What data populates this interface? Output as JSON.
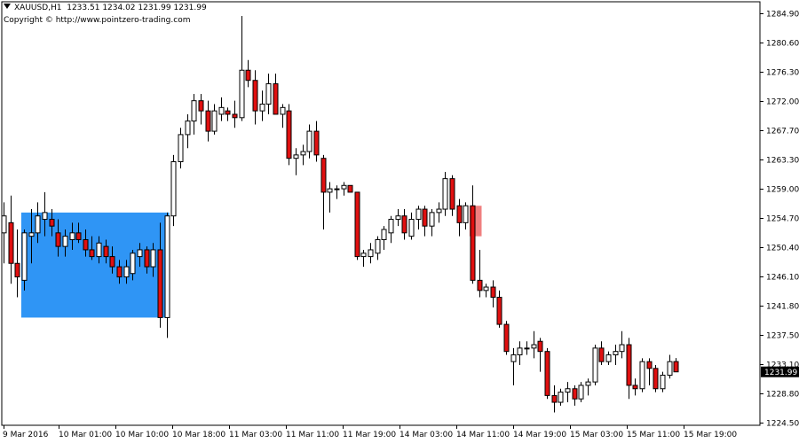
{
  "header": {
    "symbol": "XAUUSD,H1",
    "ohlc": "1233.51 1234.02 1231.99 1231.99",
    "copyright": "Copyright © http://www.pointzero-trading.com"
  },
  "colors": {
    "background": "#ffffff",
    "bull_body": "#ffffff",
    "bear_body": "#e01010",
    "wick": "#000000",
    "zone_blue": "#2f95f5",
    "zone_red": "#f08080"
  },
  "chart_data": {
    "type": "candlestick",
    "title": "",
    "xlabel": "",
    "ylabel": "",
    "ylim": [
      1223.8,
      1286.0
    ],
    "y_ticks": [
      "1284.90",
      "1280.60",
      "1276.30",
      "1272.00",
      "1267.70",
      "1263.30",
      "1259.00",
      "1254.70",
      "1250.40",
      "1246.10",
      "1241.80",
      "1237.50",
      "1233.10",
      "1228.80",
      "1224.50"
    ],
    "x_ticks": [
      "9 Mar 2016",
      "10 Mar 01:00",
      "10 Mar 10:00",
      "10 Mar 18:00",
      "11 Mar 03:00",
      "11 Mar 11:00",
      "11 Mar 19:00",
      "14 Mar 03:00",
      "14 Mar 11:00",
      "14 Mar 19:00",
      "15 Mar 03:00",
      "15 Mar 11:00",
      "15 Mar 19:00"
    ],
    "current_price": "1231.99",
    "candles": [
      {
        "o": 1252.5,
        "h": 1257.0,
        "l": 1248.0,
        "c": 1255.0
      },
      {
        "o": 1254.0,
        "h": 1258.0,
        "l": 1245.0,
        "c": 1248.0
      },
      {
        "o": 1248.0,
        "h": 1253.0,
        "l": 1243.0,
        "c": 1246.0
      },
      {
        "o": 1245.5,
        "h": 1253.0,
        "l": 1244.0,
        "c": 1252.5
      },
      {
        "o": 1252.0,
        "h": 1256.0,
        "l": 1248.0,
        "c": 1252.5
      },
      {
        "o": 1252.5,
        "h": 1257.0,
        "l": 1251.0,
        "c": 1255.0
      },
      {
        "o": 1254.5,
        "h": 1258.5,
        "l": 1252.0,
        "c": 1255.5
      },
      {
        "o": 1254.5,
        "h": 1256.0,
        "l": 1252.0,
        "c": 1253.5
      },
      {
        "o": 1252.5,
        "h": 1254.5,
        "l": 1249.0,
        "c": 1250.5
      },
      {
        "o": 1250.5,
        "h": 1253.0,
        "l": 1249.0,
        "c": 1252.0
      },
      {
        "o": 1251.5,
        "h": 1254.0,
        "l": 1250.0,
        "c": 1252.5
      },
      {
        "o": 1252.5,
        "h": 1254.0,
        "l": 1251.0,
        "c": 1251.5
      },
      {
        "o": 1251.5,
        "h": 1253.0,
        "l": 1249.0,
        "c": 1250.0
      },
      {
        "o": 1250.0,
        "h": 1252.0,
        "l": 1248.5,
        "c": 1249.0
      },
      {
        "o": 1249.0,
        "h": 1252.0,
        "l": 1248.0,
        "c": 1251.0
      },
      {
        "o": 1250.5,
        "h": 1251.5,
        "l": 1248.0,
        "c": 1249.0
      },
      {
        "o": 1249.0,
        "h": 1250.5,
        "l": 1246.5,
        "c": 1247.5
      },
      {
        "o": 1247.5,
        "h": 1248.5,
        "l": 1245.0,
        "c": 1246.0
      },
      {
        "o": 1246.0,
        "h": 1248.5,
        "l": 1245.0,
        "c": 1247.5
      },
      {
        "o": 1246.5,
        "h": 1250.0,
        "l": 1245.5,
        "c": 1249.5
      },
      {
        "o": 1249.0,
        "h": 1251.0,
        "l": 1247.5,
        "c": 1250.0
      },
      {
        "o": 1250.0,
        "h": 1250.5,
        "l": 1246.5,
        "c": 1247.5
      },
      {
        "o": 1247.5,
        "h": 1251.0,
        "l": 1246.0,
        "c": 1250.0
      },
      {
        "o": 1250.0,
        "h": 1254.0,
        "l": 1238.5,
        "c": 1240.0
      },
      {
        "o": 1240.0,
        "h": 1255.5,
        "l": 1237.0,
        "c": 1255.0
      },
      {
        "o": 1255.0,
        "h": 1264.0,
        "l": 1253.5,
        "c": 1263.0
      },
      {
        "o": 1263.0,
        "h": 1268.0,
        "l": 1262.0,
        "c": 1267.0
      },
      {
        "o": 1267.0,
        "h": 1270.0,
        "l": 1265.0,
        "c": 1269.0
      },
      {
        "o": 1269.0,
        "h": 1273.0,
        "l": 1267.0,
        "c": 1272.0
      },
      {
        "o": 1272.0,
        "h": 1273.0,
        "l": 1268.5,
        "c": 1270.5
      },
      {
        "o": 1270.5,
        "h": 1272.0,
        "l": 1266.0,
        "c": 1267.5
      },
      {
        "o": 1267.5,
        "h": 1271.5,
        "l": 1267.0,
        "c": 1270.5
      },
      {
        "o": 1270.0,
        "h": 1272.5,
        "l": 1269.0,
        "c": 1271.0
      },
      {
        "o": 1270.5,
        "h": 1271.0,
        "l": 1269.0,
        "c": 1270.0
      },
      {
        "o": 1270.0,
        "h": 1272.0,
        "l": 1268.0,
        "c": 1269.5
      },
      {
        "o": 1269.5,
        "h": 1284.5,
        "l": 1269.0,
        "c": 1276.5
      },
      {
        "o": 1276.5,
        "h": 1278.0,
        "l": 1274.0,
        "c": 1275.0
      },
      {
        "o": 1275.0,
        "h": 1276.5,
        "l": 1268.5,
        "c": 1270.5
      },
      {
        "o": 1270.5,
        "h": 1273.5,
        "l": 1269.0,
        "c": 1271.5
      },
      {
        "o": 1271.5,
        "h": 1276.0,
        "l": 1270.0,
        "c": 1274.5
      },
      {
        "o": 1274.5,
        "h": 1276.0,
        "l": 1270.0,
        "c": 1270.0
      },
      {
        "o": 1270.0,
        "h": 1271.5,
        "l": 1268.0,
        "c": 1271.0
      },
      {
        "o": 1270.5,
        "h": 1271.5,
        "l": 1262.5,
        "c": 1263.5
      },
      {
        "o": 1263.5,
        "h": 1265.0,
        "l": 1261.0,
        "c": 1264.0
      },
      {
        "o": 1264.0,
        "h": 1265.5,
        "l": 1262.5,
        "c": 1264.5
      },
      {
        "o": 1264.5,
        "h": 1268.5,
        "l": 1263.5,
        "c": 1267.5
      },
      {
        "o": 1267.5,
        "h": 1269.0,
        "l": 1263.0,
        "c": 1264.0
      },
      {
        "o": 1263.5,
        "h": 1264.0,
        "l": 1253.0,
        "c": 1258.5
      },
      {
        "o": 1258.5,
        "h": 1260.0,
        "l": 1255.5,
        "c": 1259.0
      },
      {
        "o": 1259.0,
        "h": 1259.5,
        "l": 1257.5,
        "c": 1259.0
      },
      {
        "o": 1259.0,
        "h": 1260.0,
        "l": 1258.0,
        "c": 1259.5
      },
      {
        "o": 1259.5,
        "h": 1259.5,
        "l": 1258.5,
        "c": 1258.5
      },
      {
        "o": 1258.5,
        "h": 1258.5,
        "l": 1248.5,
        "c": 1249.0
      },
      {
        "o": 1249.0,
        "h": 1250.0,
        "l": 1247.5,
        "c": 1249.5
      },
      {
        "o": 1249.0,
        "h": 1251.0,
        "l": 1248.0,
        "c": 1250.0
      },
      {
        "o": 1249.5,
        "h": 1252.0,
        "l": 1248.5,
        "c": 1251.5
      },
      {
        "o": 1251.5,
        "h": 1253.5,
        "l": 1250.0,
        "c": 1253.0
      },
      {
        "o": 1252.5,
        "h": 1255.0,
        "l": 1251.0,
        "c": 1254.5
      },
      {
        "o": 1254.5,
        "h": 1256.0,
        "l": 1253.5,
        "c": 1255.0
      },
      {
        "o": 1255.0,
        "h": 1256.0,
        "l": 1251.5,
        "c": 1252.5
      },
      {
        "o": 1252.0,
        "h": 1255.5,
        "l": 1251.5,
        "c": 1254.5
      },
      {
        "o": 1254.5,
        "h": 1256.5,
        "l": 1253.0,
        "c": 1256.0
      },
      {
        "o": 1256.0,
        "h": 1256.5,
        "l": 1252.0,
        "c": 1253.5
      },
      {
        "o": 1253.5,
        "h": 1256.0,
        "l": 1252.0,
        "c": 1255.5
      },
      {
        "o": 1255.5,
        "h": 1257.0,
        "l": 1254.0,
        "c": 1256.0
      },
      {
        "o": 1256.0,
        "h": 1261.5,
        "l": 1255.0,
        "c": 1260.5
      },
      {
        "o": 1260.5,
        "h": 1261.0,
        "l": 1255.0,
        "c": 1256.0
      },
      {
        "o": 1256.5,
        "h": 1257.5,
        "l": 1252.0,
        "c": 1254.0
      },
      {
        "o": 1254.0,
        "h": 1257.0,
        "l": 1253.0,
        "c": 1256.5
      },
      {
        "o": 1256.5,
        "h": 1259.5,
        "l": 1245.0,
        "c": 1245.5
      },
      {
        "o": 1245.5,
        "h": 1250.0,
        "l": 1243.0,
        "c": 1244.0
      },
      {
        "o": 1244.0,
        "h": 1245.0,
        "l": 1243.0,
        "c": 1244.5
      },
      {
        "o": 1244.5,
        "h": 1245.5,
        "l": 1241.5,
        "c": 1243.0
      },
      {
        "o": 1243.0,
        "h": 1244.0,
        "l": 1238.5,
        "c": 1239.0
      },
      {
        "o": 1239.0,
        "h": 1239.5,
        "l": 1234.5,
        "c": 1235.0
      },
      {
        "o": 1233.5,
        "h": 1235.5,
        "l": 1230.0,
        "c": 1234.5
      },
      {
        "o": 1234.5,
        "h": 1236.5,
        "l": 1233.0,
        "c": 1235.5
      },
      {
        "o": 1235.5,
        "h": 1236.5,
        "l": 1234.5,
        "c": 1235.5
      },
      {
        "o": 1235.5,
        "h": 1238.0,
        "l": 1234.0,
        "c": 1236.0
      },
      {
        "o": 1236.5,
        "h": 1237.0,
        "l": 1232.0,
        "c": 1235.0
      },
      {
        "o": 1235.0,
        "h": 1235.5,
        "l": 1228.0,
        "c": 1228.5
      },
      {
        "o": 1228.5,
        "h": 1230.0,
        "l": 1226.0,
        "c": 1227.5
      },
      {
        "o": 1227.5,
        "h": 1229.5,
        "l": 1227.0,
        "c": 1229.0
      },
      {
        "o": 1229.0,
        "h": 1230.5,
        "l": 1227.5,
        "c": 1229.5
      },
      {
        "o": 1229.5,
        "h": 1230.0,
        "l": 1227.0,
        "c": 1228.0
      },
      {
        "o": 1228.0,
        "h": 1230.5,
        "l": 1227.5,
        "c": 1230.0
      },
      {
        "o": 1230.0,
        "h": 1231.0,
        "l": 1228.5,
        "c": 1230.5
      },
      {
        "o": 1230.5,
        "h": 1236.0,
        "l": 1230.0,
        "c": 1235.5
      },
      {
        "o": 1235.5,
        "h": 1236.5,
        "l": 1233.0,
        "c": 1233.5
      },
      {
        "o": 1233.5,
        "h": 1235.0,
        "l": 1233.0,
        "c": 1234.5
      },
      {
        "o": 1234.5,
        "h": 1236.0,
        "l": 1233.0,
        "c": 1235.0
      },
      {
        "o": 1235.0,
        "h": 1238.0,
        "l": 1234.0,
        "c": 1236.0
      },
      {
        "o": 1236.0,
        "h": 1237.0,
        "l": 1228.0,
        "c": 1230.0
      },
      {
        "o": 1230.0,
        "h": 1231.0,
        "l": 1228.5,
        "c": 1229.5
      },
      {
        "o": 1229.5,
        "h": 1234.0,
        "l": 1229.0,
        "c": 1233.5
      },
      {
        "o": 1233.5,
        "h": 1234.0,
        "l": 1230.0,
        "c": 1232.5
      },
      {
        "o": 1232.5,
        "h": 1233.0,
        "l": 1229.0,
        "c": 1229.5
      },
      {
        "o": 1229.5,
        "h": 1232.0,
        "l": 1229.0,
        "c": 1231.5
      },
      {
        "o": 1231.5,
        "h": 1234.5,
        "l": 1231.0,
        "c": 1233.5
      },
      {
        "o": 1233.51,
        "h": 1234.02,
        "l": 1231.99,
        "c": 1231.99
      }
    ],
    "zones": [
      {
        "name": "blue-demand-zone",
        "from_index": 3,
        "to_index": 24,
        "y_low": 1240.0,
        "y_high": 1255.5,
        "color": "#2f95f5"
      },
      {
        "name": "red-highlight-zone",
        "from_index": 69,
        "to_index": 70,
        "y_low": 1252.0,
        "y_high": 1256.5,
        "color": "#f08080"
      }
    ]
  }
}
